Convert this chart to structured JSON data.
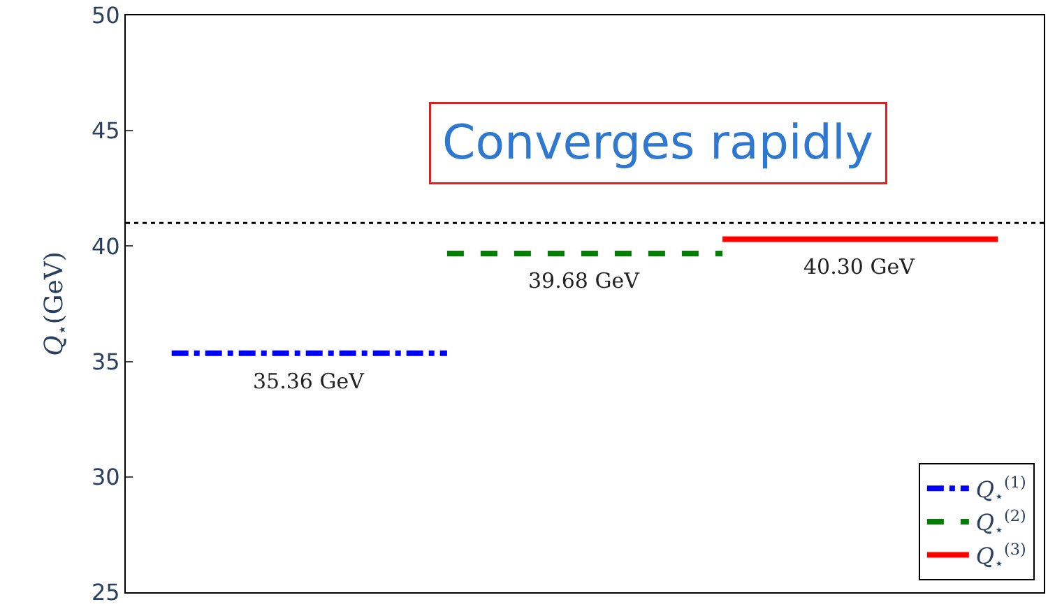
{
  "chart_data": {
    "type": "line",
    "ylabel": "Q$_{⋆}$(GeV)",
    "categories": [
      null,
      null,
      null,
      null,
      null,
      null,
      null,
      null,
      null,
      null
    ],
    "ylim": [
      25,
      50
    ],
    "yticks": [
      25,
      30,
      35,
      40,
      45,
      50
    ],
    "tick_labels": "y",
    "legend": "bottom right",
    "marker": "none",
    "series": [
      {
        "name": "Q$_{⋆}$$^{(1)}$",
        "color": "#0000ff",
        "line_style": "dashdot",
        "values": [
          35.36,
          35.36,
          35.36,
          35.36,
          null,
          null,
          null,
          null,
          null,
          null
        ]
      },
      {
        "name": "Q$_{⋆}$$^{(2)}$",
        "color": "#007f00",
        "line_style": "dashed",
        "values": [
          null,
          null,
          null,
          39.68,
          39.68,
          39.68,
          39.68,
          null,
          null,
          null
        ]
      },
      {
        "name": "Q$_{⋆}$$^{(3)}$",
        "color": "#ff0000",
        "line_style": "solid",
        "values": [
          null,
          null,
          null,
          null,
          null,
          null,
          40.3,
          40.3,
          40.3,
          40.3
        ]
      }
    ],
    "ref_lines": [
      {
        "axis": "y",
        "value": 41,
        "color": "#000000",
        "line_style": "dotted"
      }
    ],
    "annotations": [
      {
        "text": "35.36 GeV",
        "y": 35.36
      },
      {
        "text": "39.68 GeV",
        "y": 39.68
      },
      {
        "text": "40.30 GeV",
        "y": 40.3
      },
      "Converges rapidly"
    ]
  }
}
